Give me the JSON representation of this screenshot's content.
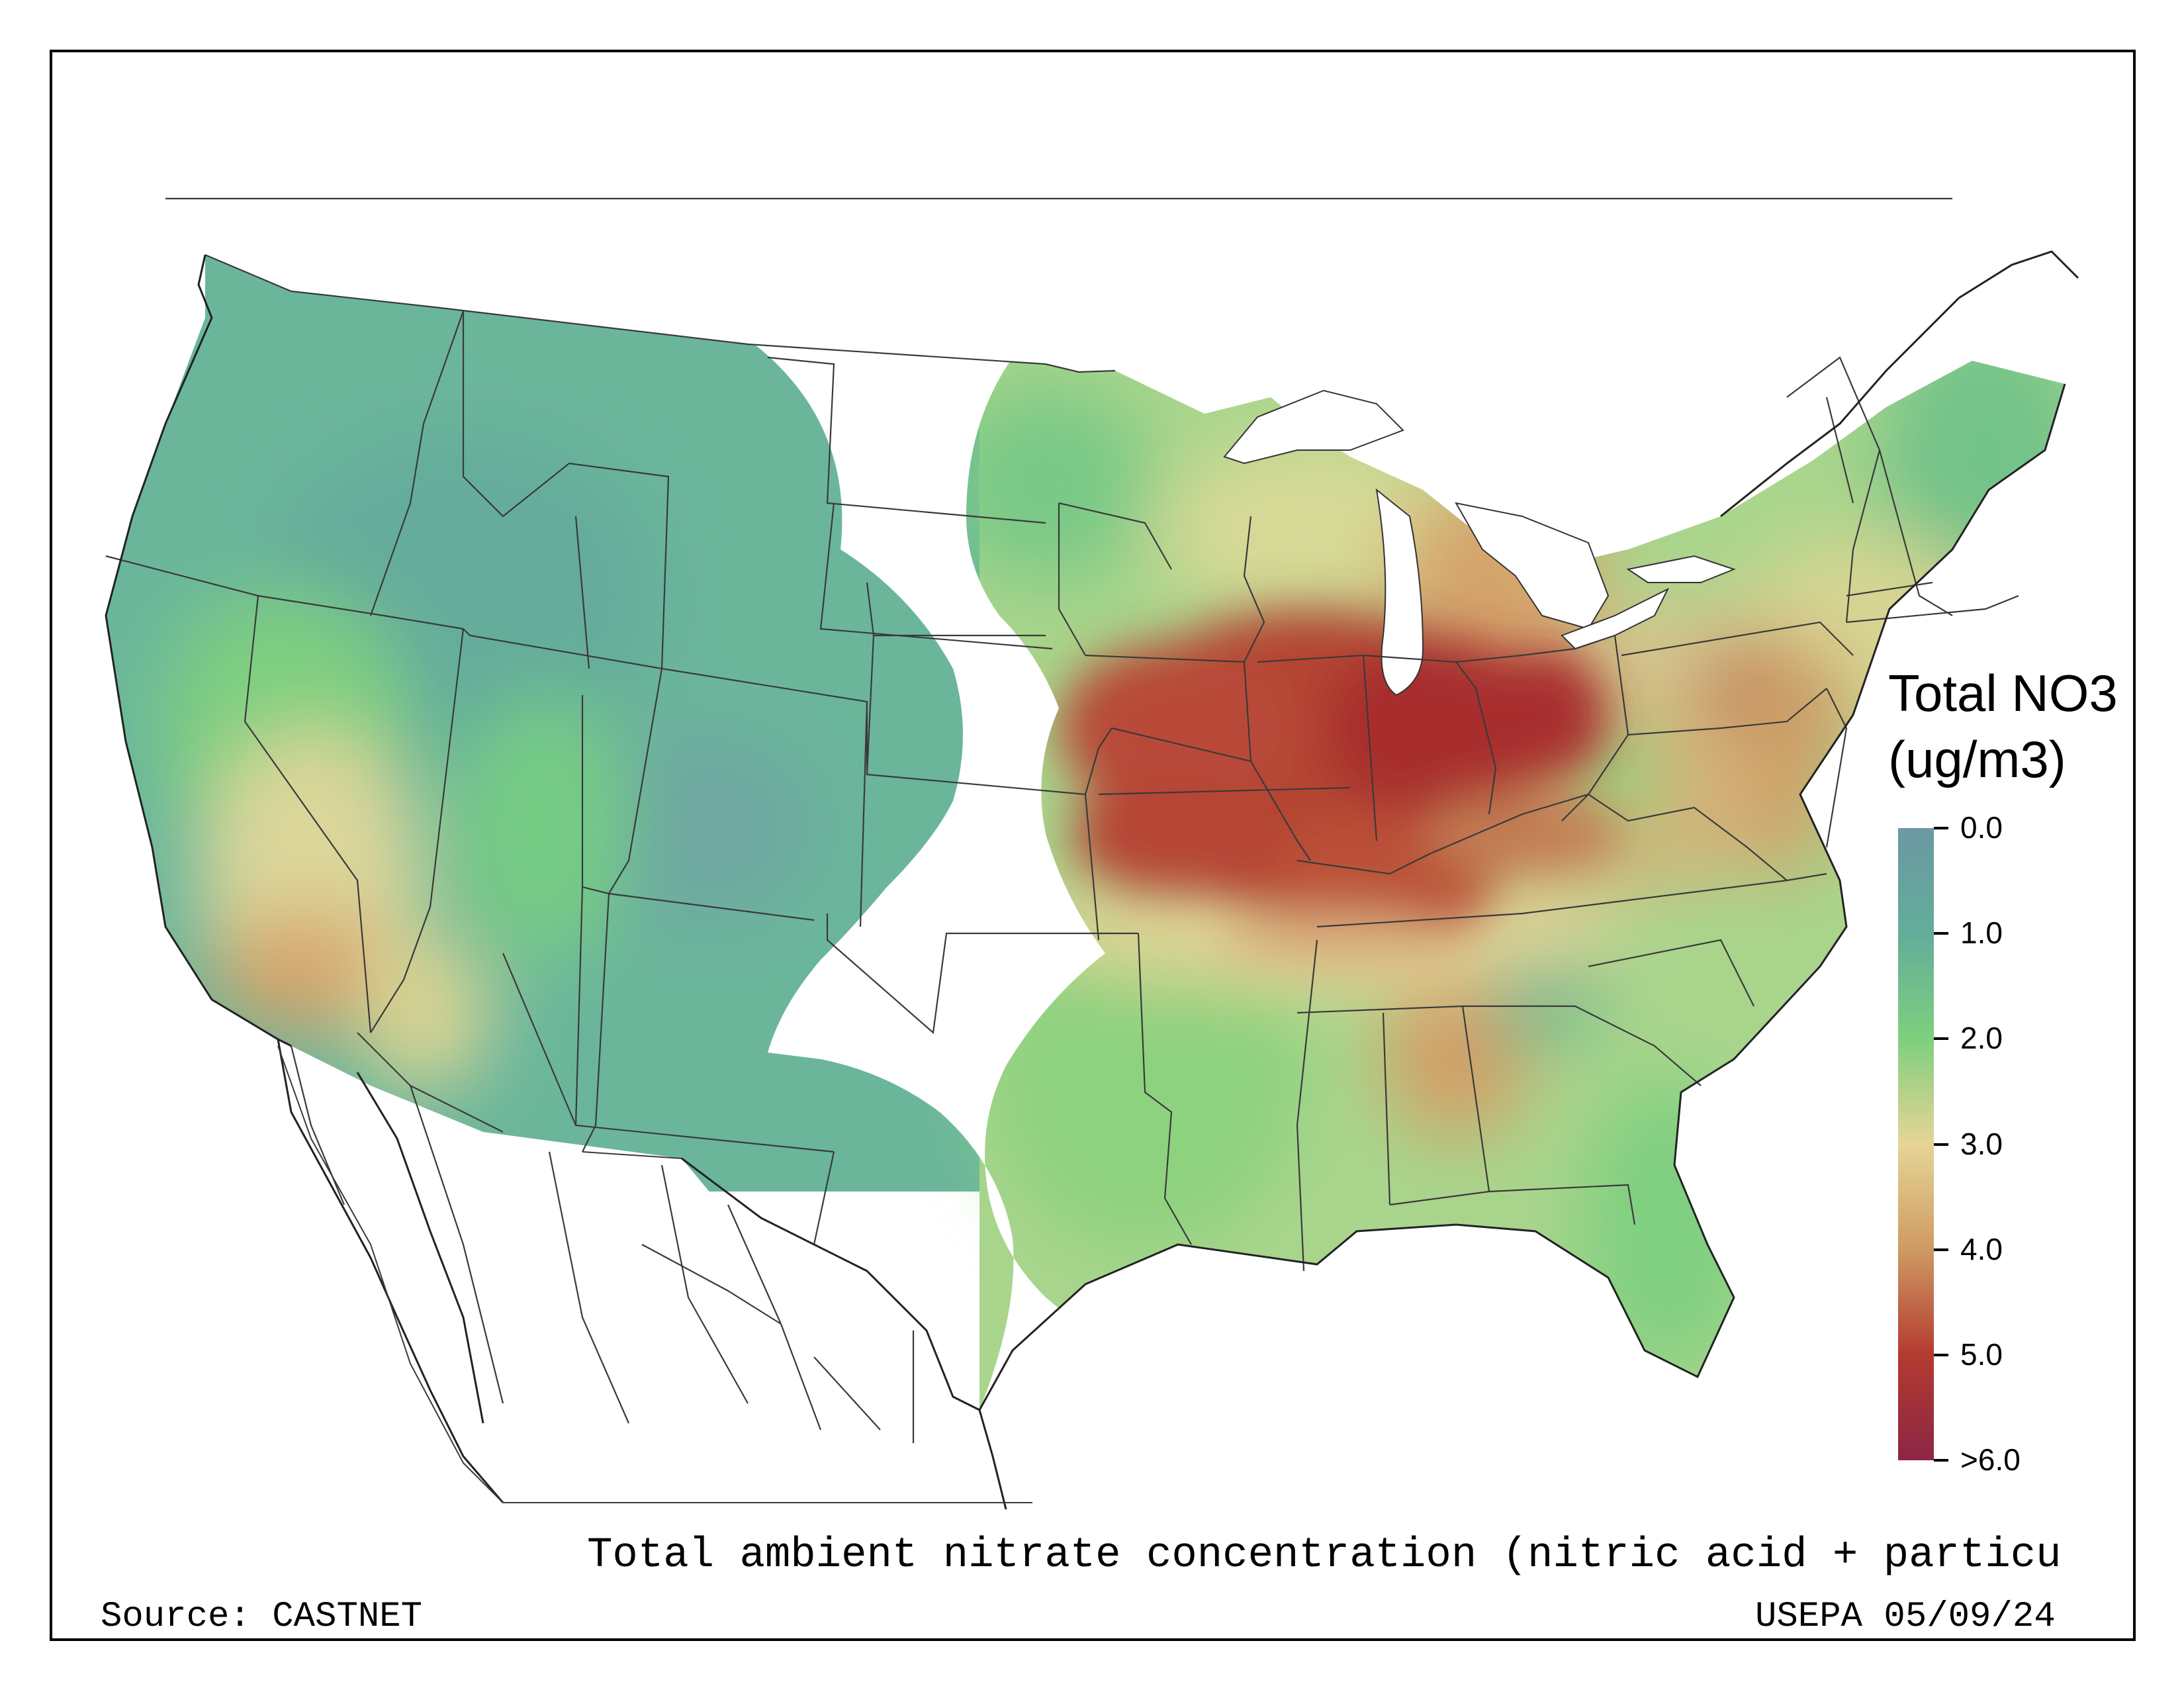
{
  "legend": {
    "title_line1": "Total NO3",
    "title_line2": "(ug/m3)",
    "ticks": [
      {
        "label": "0.0",
        "value": 0.0,
        "color": "#6b98a3"
      },
      {
        "label": "1.0",
        "value": 1.0,
        "color": "#63ad99"
      },
      {
        "label": "2.0",
        "value": 2.0,
        "color": "#7fcf7e"
      },
      {
        "label": "3.0",
        "value": 3.0,
        "color": "#e6d596"
      },
      {
        "label": "4.0",
        "value": 4.0,
        "color": "#cf9a63"
      },
      {
        "label": "5.0",
        "value": 5.0,
        "color": "#b33b30"
      },
      {
        "label": ">6.0",
        "value": 6.0,
        "color": "#8c2645"
      }
    ]
  },
  "caption": "Total ambient nitrate concentration (nitric acid + particu",
  "source": "Source: CASTNET",
  "agency_date": "USEPA 05/09/24",
  "colors": {
    "low_blue": "#6b98a3",
    "teal": "#63ad99",
    "green": "#74cc85",
    "yellow": "#e0d798",
    "tan": "#cf9a63",
    "red": "#b33b30",
    "dark_red": "#8c2645"
  }
}
